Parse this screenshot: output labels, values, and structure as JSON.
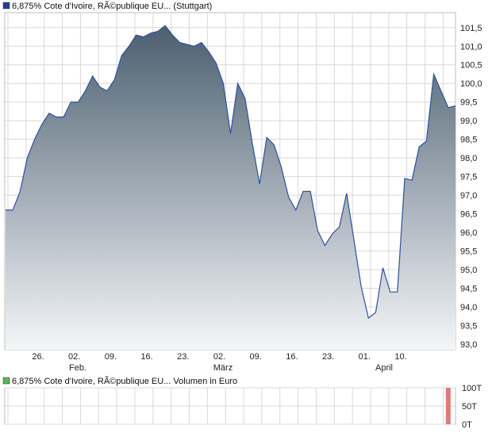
{
  "main_legend": "6,875% Cote d'Ivoire, RÃ©publique EU... (Stuttgart)",
  "volume_legend": "6,875% Cote d'Ivoire, RÃ©publique EU... Volumen in Euro",
  "colors": {
    "line": "#2a52a3",
    "area_top": "#4c5f70",
    "area_bottom": "#f4f6f8",
    "grid": "#d8d8d8",
    "main_swatch": "#1f3e99",
    "volume_swatch": "#57b657",
    "volume_bar": "#e07a7a"
  },
  "chart_data": [
    {
      "type": "area",
      "ylim": [
        92.85,
        101.9
      ],
      "y_ticks": [
        "101,5",
        "101,0",
        "100,5",
        "100,0",
        "99,5",
        "99,0",
        "98,5",
        "98,0",
        "97,5",
        "97,0",
        "96,5",
        "96,0",
        "95,5",
        "95,0",
        "94,5",
        "94,0",
        "93,5",
        "93,0"
      ],
      "x_ticks": [
        "26.",
        "02.",
        "09.",
        "16.",
        "23.",
        "02.",
        "09.",
        "16.",
        "23.",
        "01.",
        "10."
      ],
      "x_month_labels": [
        "Feb.",
        "März",
        "April"
      ],
      "series": [
        {
          "values": [
            96.6,
            96.6,
            97.1,
            98.0,
            98.5,
            98.9,
            99.2,
            99.1,
            99.1,
            99.5,
            99.5,
            99.8,
            100.2,
            99.9,
            99.8,
            100.1,
            100.75,
            101.0,
            101.3,
            101.25,
            101.35,
            101.4,
            101.55,
            101.3,
            101.1,
            101.05,
            101.0,
            101.1,
            100.85,
            100.55,
            100.0,
            98.65,
            100.0,
            99.6,
            98.4,
            97.3,
            98.55,
            98.35,
            97.75,
            96.95,
            96.6,
            97.1,
            97.1,
            96.05,
            95.65,
            95.95,
            96.15,
            97.05,
            95.8,
            94.55,
            93.7,
            93.85,
            95.05,
            94.4,
            94.4,
            97.45,
            97.4,
            98.3,
            98.45,
            100.25,
            99.8,
            99.35,
            99.4
          ]
        }
      ]
    },
    {
      "type": "bar",
      "ylim": [
        0,
        100
      ],
      "y_ticks": [
        "100T",
        "50T",
        "0T"
      ],
      "values": [
        0,
        0,
        0,
        0,
        0,
        0,
        0,
        0,
        0,
        0,
        0,
        0,
        0,
        0,
        0,
        0,
        0,
        0,
        0,
        0,
        0,
        0,
        0,
        0,
        0,
        0,
        0,
        0,
        0,
        0,
        0,
        0,
        0,
        0,
        0,
        0,
        0,
        0,
        0,
        0,
        0,
        0,
        0,
        0,
        0,
        0,
        0,
        0,
        0,
        0,
        0,
        0,
        0,
        0,
        0,
        0,
        0,
        0,
        0,
        0,
        0,
        100,
        0
      ]
    }
  ]
}
